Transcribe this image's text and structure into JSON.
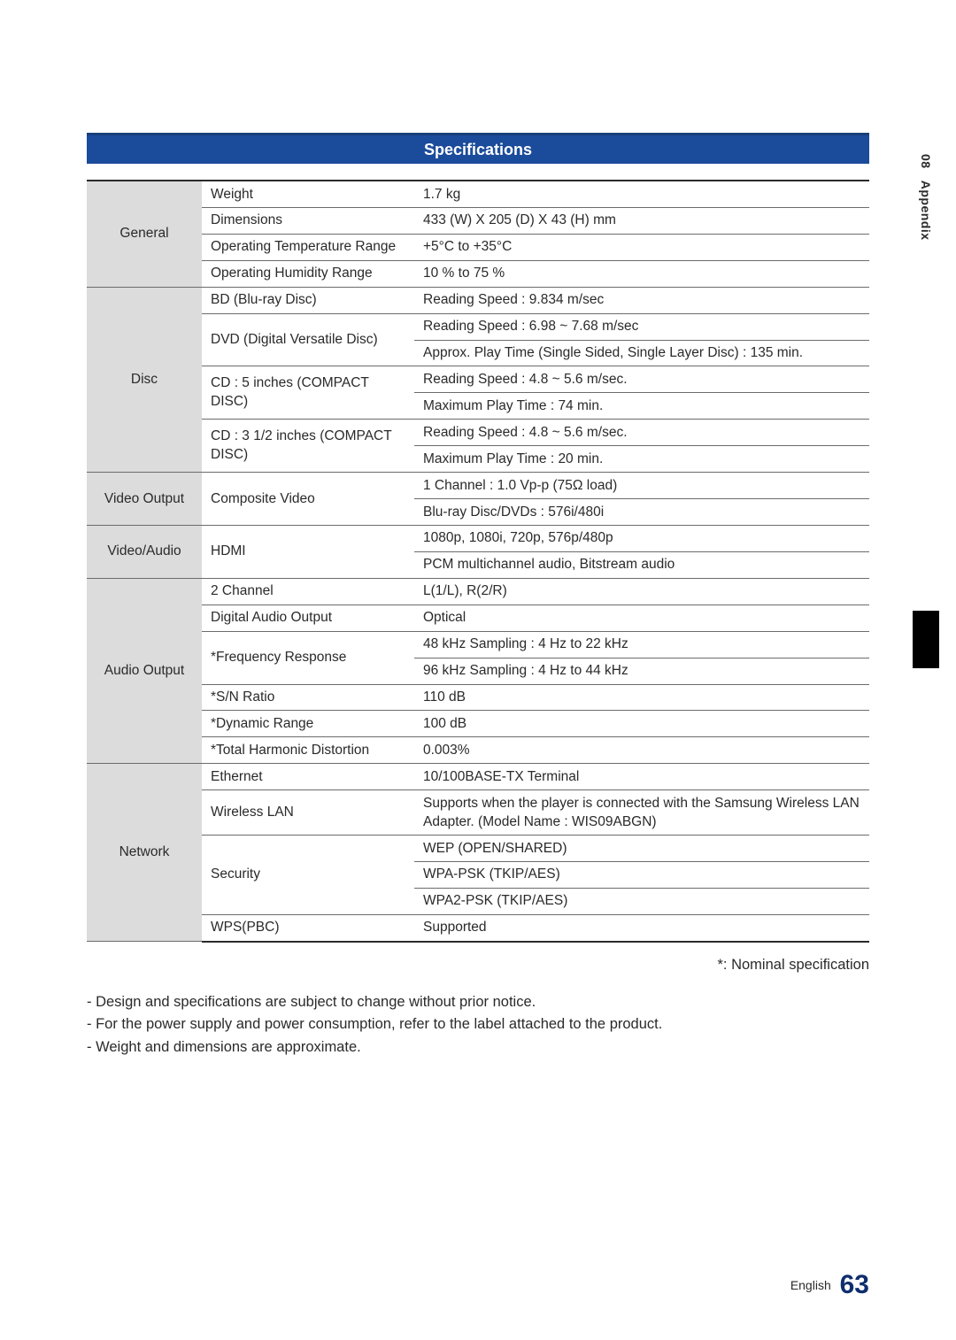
{
  "header": {
    "title": "Specifications"
  },
  "sidebar": {
    "chapter": "08",
    "section": "Appendix"
  },
  "footer": {
    "lang": "English",
    "page": "63"
  },
  "note_right": "*: Nominal specification",
  "notes": [
    "Design and specifications are subject to change without prior notice.",
    "For the power supply and power consumption, refer to the label attached to the product.",
    "Weight and dimensions are approximate."
  ],
  "spec": {
    "rows": [
      {
        "cat": "General",
        "cat_span": 4,
        "label": "Weight",
        "label_span": 1,
        "val": "1.7 kg",
        "section_end": false,
        "top": true
      },
      {
        "label": "Dimensions",
        "label_span": 1,
        "val": "433 (W) X 205 (D) X 43 (H) mm",
        "section_end": false
      },
      {
        "label": "Operating Temperature Range",
        "label_span": 1,
        "val": "+5°C to +35°C",
        "section_end": false
      },
      {
        "label": "Operating Humidity Range",
        "label_span": 1,
        "val": "10 % to 75 %",
        "section_end": true
      },
      {
        "cat": "Disc",
        "cat_span": 7,
        "label": "BD (Blu-ray Disc)",
        "label_span": 1,
        "val": "Reading Speed : 9.834 m/sec",
        "section_end": false
      },
      {
        "label": "DVD (Digital Versatile Disc)",
        "label_span": 2,
        "val": "Reading Speed : 6.98 ~ 7.68 m/sec",
        "section_end": false
      },
      {
        "val": "Approx. Play Time (Single Sided, Single Layer Disc) : 135 min.",
        "section_end": false
      },
      {
        "label": "CD : 5 inches (COMPACT DISC)",
        "label_span": 2,
        "val": "Reading Speed : 4.8 ~ 5.6 m/sec.",
        "section_end": false
      },
      {
        "val": "Maximum Play Time : 74 min.",
        "section_end": false
      },
      {
        "label": "CD : 3 1/2 inches (COMPACT DISC)",
        "label_span": 2,
        "val": "Reading Speed : 4.8 ~ 5.6 m/sec.",
        "section_end": false
      },
      {
        "val": "Maximum Play Time : 20 min.",
        "section_end": true
      },
      {
        "cat": "Video Output",
        "cat_span": 2,
        "label": "Composite Video",
        "label_span": 2,
        "val": "1 Channel : 1.0 Vp-p (75Ω load)",
        "section_end": false
      },
      {
        "val": "Blu-ray Disc/DVDs : 576i/480i",
        "section_end": true
      },
      {
        "cat": "Video/Audio",
        "cat_span": 2,
        "label": "HDMI",
        "label_span": 2,
        "val": "1080p, 1080i, 720p, 576p/480p",
        "section_end": false
      },
      {
        "val": "PCM multichannel audio, Bitstream audio",
        "section_end": true
      },
      {
        "cat": "Audio Output",
        "cat_span": 7,
        "label": "2 Channel",
        "label_span": 1,
        "val": "L(1/L), R(2/R)",
        "section_end": false
      },
      {
        "label": "Digital Audio Output",
        "label_span": 1,
        "val": "Optical",
        "section_end": false
      },
      {
        "label": "*Frequency Response",
        "label_span": 2,
        "val": "48 kHz Sampling : 4 Hz to 22 kHz",
        "section_end": false
      },
      {
        "val": "96 kHz Sampling : 4 Hz to 44 kHz",
        "section_end": false
      },
      {
        "label": "*S/N Ratio",
        "label_span": 1,
        "val": "110 dB",
        "section_end": false
      },
      {
        "label": "*Dynamic Range",
        "label_span": 1,
        "val": "100 dB",
        "section_end": false
      },
      {
        "label": "*Total Harmonic Distortion",
        "label_span": 1,
        "val": "0.003%",
        "section_end": true
      },
      {
        "cat": "Network",
        "cat_span": 6,
        "label": "Ethernet",
        "label_span": 1,
        "val": "10/100BASE-TX Terminal",
        "section_end": false
      },
      {
        "label": "Wireless LAN",
        "label_span": 1,
        "val": "Supports when the player is connected with the Samsung Wireless LAN Adapter. (Model Name : WIS09ABGN)",
        "section_end": false
      },
      {
        "label": "Security",
        "label_span": 3,
        "val": "WEP (OPEN/SHARED)",
        "section_end": false
      },
      {
        "val": "WPA-PSK (TKIP/AES)",
        "section_end": false
      },
      {
        "val": "WPA2-PSK (TKIP/AES)",
        "section_end": false
      },
      {
        "label": "WPS(PBC)",
        "label_span": 1,
        "val": "Supported",
        "section_end": true
      }
    ]
  }
}
